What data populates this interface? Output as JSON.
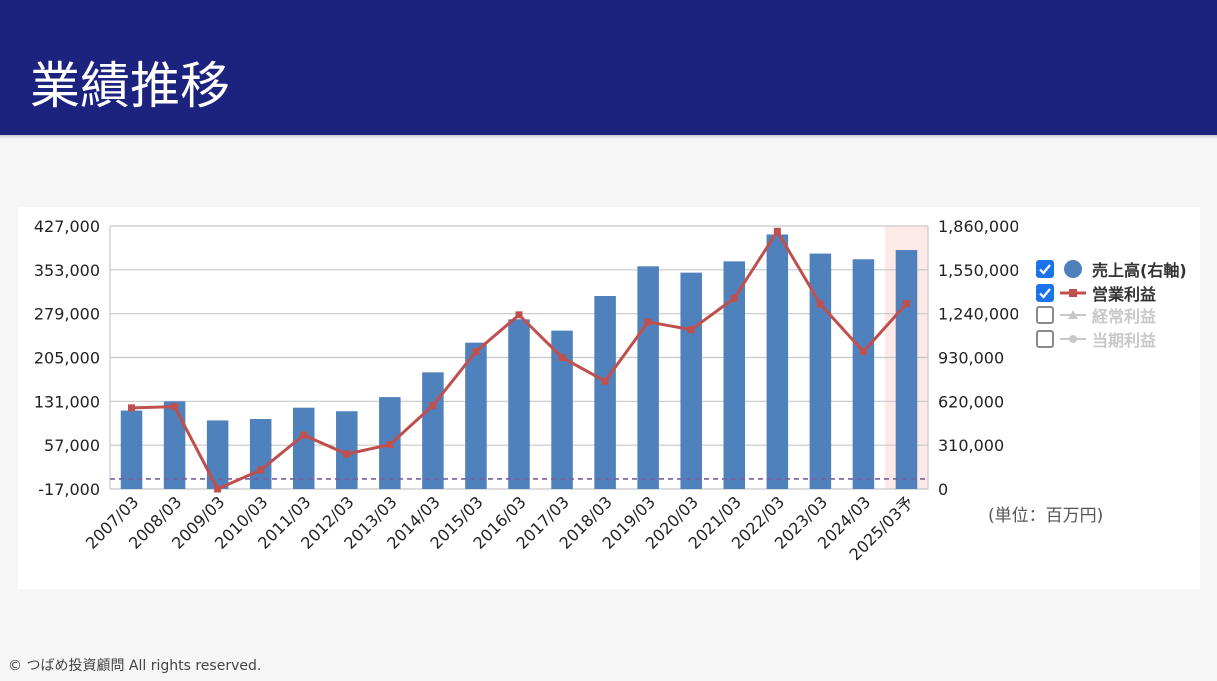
{
  "page": {
    "title": "業績推移",
    "unit_label": "(単位：百万円)",
    "copyright": "© つばめ投資顧問 All rights reserved."
  },
  "legend": [
    {
      "label": "売上高(右軸)",
      "checked": true,
      "marker": "circle",
      "color": "#4f81bd"
    },
    {
      "label": "営業利益",
      "checked": true,
      "marker": "line-square",
      "color": "#c0504d"
    },
    {
      "label": "経常利益",
      "checked": false,
      "marker": "line-triangle",
      "color": "#c8c8c8"
    },
    {
      "label": "当期利益",
      "checked": false,
      "marker": "line-circle",
      "color": "#c8c8c8"
    }
  ],
  "chart_data": {
    "type": "bar",
    "categories": [
      "2007/03",
      "2008/03",
      "2009/03",
      "2010/03",
      "2011/03",
      "2012/03",
      "2013/03",
      "2014/03",
      "2015/03",
      "2016/03",
      "2017/03",
      "2018/03",
      "2019/03",
      "2020/03",
      "2021/03",
      "2022/03",
      "2023/03",
      "2024/03",
      "2025/03予"
    ],
    "series": [
      {
        "name": "売上高(右軸)",
        "type": "bar",
        "axis": "right",
        "color": "#4f81bd",
        "values": [
          555000,
          620000,
          485000,
          495000,
          575000,
          550000,
          650000,
          825000,
          1035000,
          1200000,
          1120000,
          1365000,
          1575000,
          1530000,
          1610000,
          1800000,
          1665000,
          1625000,
          1690000
        ]
      },
      {
        "name": "営業利益",
        "type": "line",
        "axis": "left",
        "color": "#c0504d",
        "values": [
          120000,
          122000,
          -17000,
          15000,
          74000,
          42000,
          58000,
          124000,
          215000,
          277000,
          205000,
          165000,
          265000,
          252000,
          305000,
          418000,
          295000,
          215000,
          296000
        ]
      }
    ],
    "left_axis": {
      "ylim": [
        -17000,
        427000
      ],
      "ticks": [
        "427,000",
        "353,000",
        "279,000",
        "205,000",
        "131,000",
        "57,000",
        "-17,000"
      ]
    },
    "right_axis": {
      "ylim": [
        0,
        1860000
      ],
      "ticks": [
        "1,860,000",
        "1,550,000",
        "1,240,000",
        "930,000",
        "620,000",
        "310,000",
        "0"
      ]
    },
    "forecast_category": "2025/03予",
    "zero_line": {
      "axis": "left",
      "value": 0,
      "style": "dashed",
      "color": "#7a5fa0"
    },
    "grid": true,
    "legend_position": "right"
  }
}
